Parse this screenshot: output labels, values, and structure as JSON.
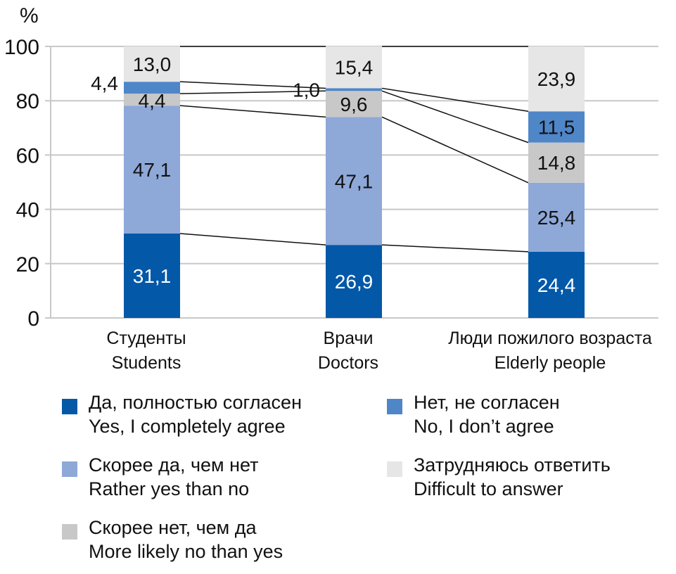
{
  "chart_data": {
    "type": "bar",
    "stacked": true,
    "ylabel": "%",
    "ylim": [
      0,
      100
    ],
    "yticks": [
      0,
      20,
      40,
      60,
      80,
      100
    ],
    "grid": true,
    "categories": [
      {
        "ru": "Студенты",
        "en": "Students"
      },
      {
        "ru": "Врачи",
        "en": "Doctors"
      },
      {
        "ru": "Люди пожилого возраста",
        "en": "Elderly people"
      }
    ],
    "series": [
      {
        "name_ru": "Да, полностью согласен",
        "name_en": "Yes, I completely agree",
        "color": "#0458a8",
        "label_color": "#ffffff",
        "values": [
          31.1,
          26.9,
          24.4
        ],
        "labels": [
          "31,1",
          "26,9",
          "24,4"
        ]
      },
      {
        "name_ru": "Скорее да, чем нет",
        "name_en": "Rather yes than no",
        "color": "#8ea8d8",
        "label_color": "#111111",
        "values": [
          47.1,
          47.1,
          25.4
        ],
        "labels": [
          "47,1",
          "47,1",
          "25,4"
        ]
      },
      {
        "name_ru": "Скорее нет, чем да",
        "name_en": "More likely no than yes",
        "color": "#c8c8c8",
        "label_color": "#111111",
        "values": [
          4.4,
          9.6,
          14.8
        ],
        "labels": [
          "4,4",
          "9,6",
          "14,8"
        ]
      },
      {
        "name_ru": "Нет, не согласен",
        "name_en": "No, I don’t agree",
        "color": "#4f86c8",
        "label_color": "#111111",
        "values": [
          4.4,
          1.0,
          11.5
        ],
        "labels": [
          "4,4",
          "1,0",
          "11,5"
        ]
      },
      {
        "name_ru": "Затрудняюсь ответить",
        "name_en": "Difficult to answer",
        "color": "#e6e6e6",
        "label_color": "#111111",
        "values": [
          13.0,
          15.4,
          23.9
        ],
        "labels": [
          "13,0",
          "15,4",
          "23,9"
        ]
      }
    ],
    "legend_placement": "bottom",
    "legend_order": [
      0,
      3,
      1,
      4,
      2
    ]
  }
}
